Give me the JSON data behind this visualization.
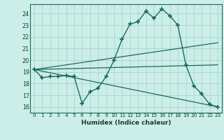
{
  "title": "",
  "xlabel": "Humidex (Indice chaleur)",
  "ylabel": "",
  "bg_color": "#cceee8",
  "line_color": "#1a6b5a",
  "grid_color": "#aad8d0",
  "xlim": [
    -0.5,
    23.5
  ],
  "ylim": [
    15.5,
    24.8
  ],
  "yticks": [
    16,
    17,
    18,
    19,
    20,
    21,
    22,
    23,
    24
  ],
  "xticks": [
    0,
    1,
    2,
    3,
    4,
    5,
    6,
    7,
    8,
    9,
    10,
    11,
    12,
    13,
    14,
    15,
    16,
    17,
    18,
    19,
    20,
    21,
    22,
    23
  ],
  "series1_x": [
    0,
    1,
    2,
    3,
    4,
    5,
    6,
    7,
    8,
    9,
    10,
    11,
    12,
    13,
    14,
    15,
    16,
    17,
    18,
    19,
    20,
    21,
    22,
    23
  ],
  "series1_y": [
    19.2,
    18.5,
    18.6,
    18.6,
    18.7,
    18.6,
    16.3,
    17.3,
    17.6,
    18.6,
    20.0,
    21.8,
    23.1,
    23.3,
    24.2,
    23.6,
    24.4,
    23.8,
    23.0,
    19.6,
    17.8,
    17.1,
    16.2,
    16.0
  ],
  "series2_x": [
    0,
    23
  ],
  "series2_y": [
    19.2,
    21.5
  ],
  "series3_x": [
    0,
    23
  ],
  "series3_y": [
    19.2,
    19.6
  ],
  "series4_x": [
    0,
    23
  ],
  "series4_y": [
    19.2,
    16.0
  ]
}
